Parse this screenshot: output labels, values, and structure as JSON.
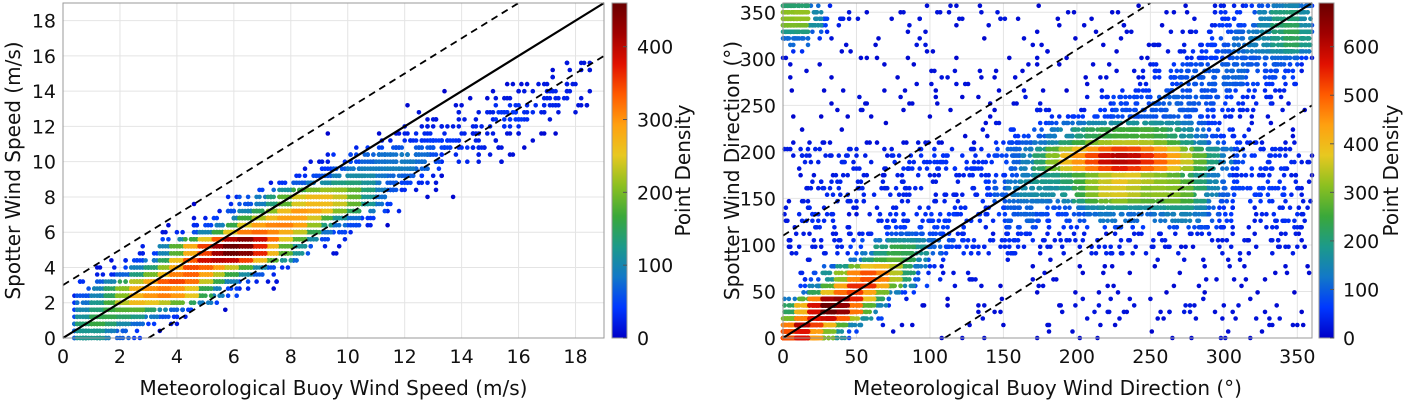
{
  "chart_data": [
    {
      "type": "scatter",
      "subtype": "density-scatter",
      "xlabel": "Meteorological Buoy Wind Speed (m/s)",
      "ylabel": "Spotter Wind Speed (m/s)",
      "xlim": [
        0,
        19
      ],
      "ylim": [
        0,
        19
      ],
      "xticks": [
        0,
        2,
        4,
        6,
        8,
        10,
        12,
        14,
        16,
        18
      ],
      "yticks": [
        0,
        2,
        4,
        6,
        8,
        10,
        12,
        14,
        16,
        18
      ],
      "grid": true,
      "reference_lines": [
        {
          "style": "solid",
          "slope": 1,
          "intercept": 0
        },
        {
          "style": "dashed",
          "slope": 1,
          "intercept": 3
        },
        {
          "style": "dashed",
          "slope": 1,
          "intercept": -3
        }
      ],
      "colorbar": {
        "label": "Point Density",
        "range": [
          0,
          460
        ],
        "ticks": [
          0,
          100,
          200,
          300,
          400
        ]
      },
      "point_distribution": {
        "x_mean": 5.5,
        "x_sd": 2.8,
        "tail_x": [
          8,
          18.5
        ],
        "y_slope": 0.78,
        "y_intercept": 0.4,
        "y_noise_sd": 0.9,
        "y_step": 0.4,
        "n": 7000,
        "peak": [
          6,
          5.5
        ]
      }
    },
    {
      "type": "scatter",
      "subtype": "density-scatter",
      "xlabel": "Meteorological Buoy Wind Direction (°)",
      "ylabel": "Spotter Wind Direction (°)",
      "xlim": [
        0,
        360
      ],
      "ylim": [
        0,
        360
      ],
      "xticks": [
        0,
        50,
        100,
        150,
        200,
        250,
        300,
        350
      ],
      "yticks": [
        0,
        50,
        100,
        150,
        200,
        250,
        300,
        350
      ],
      "grid": true,
      "reference_lines": [
        {
          "style": "solid",
          "slope": 1,
          "intercept": 0
        },
        {
          "style": "dashed",
          "slope": 1,
          "intercept": 110
        },
        {
          "style": "dashed",
          "slope": 1,
          "intercept": -110
        }
      ],
      "colorbar": {
        "label": "Point Density",
        "range": [
          0,
          690
        ],
        "ticks": [
          0,
          100,
          200,
          300,
          400,
          500,
          600
        ]
      },
      "point_distribution": {
        "peak": [
          235,
          190
        ],
        "secondary_peak": [
          35,
          35
        ],
        "y_step": 7,
        "n": 9000
      }
    }
  ],
  "colormap": [
    "#0000c8",
    "#0038ff",
    "#1278c8",
    "#1c9a8a",
    "#3aa83a",
    "#8cc020",
    "#e8c820",
    "#ffa010",
    "#ff5a00",
    "#e01000",
    "#a00000",
    "#6a0000"
  ]
}
